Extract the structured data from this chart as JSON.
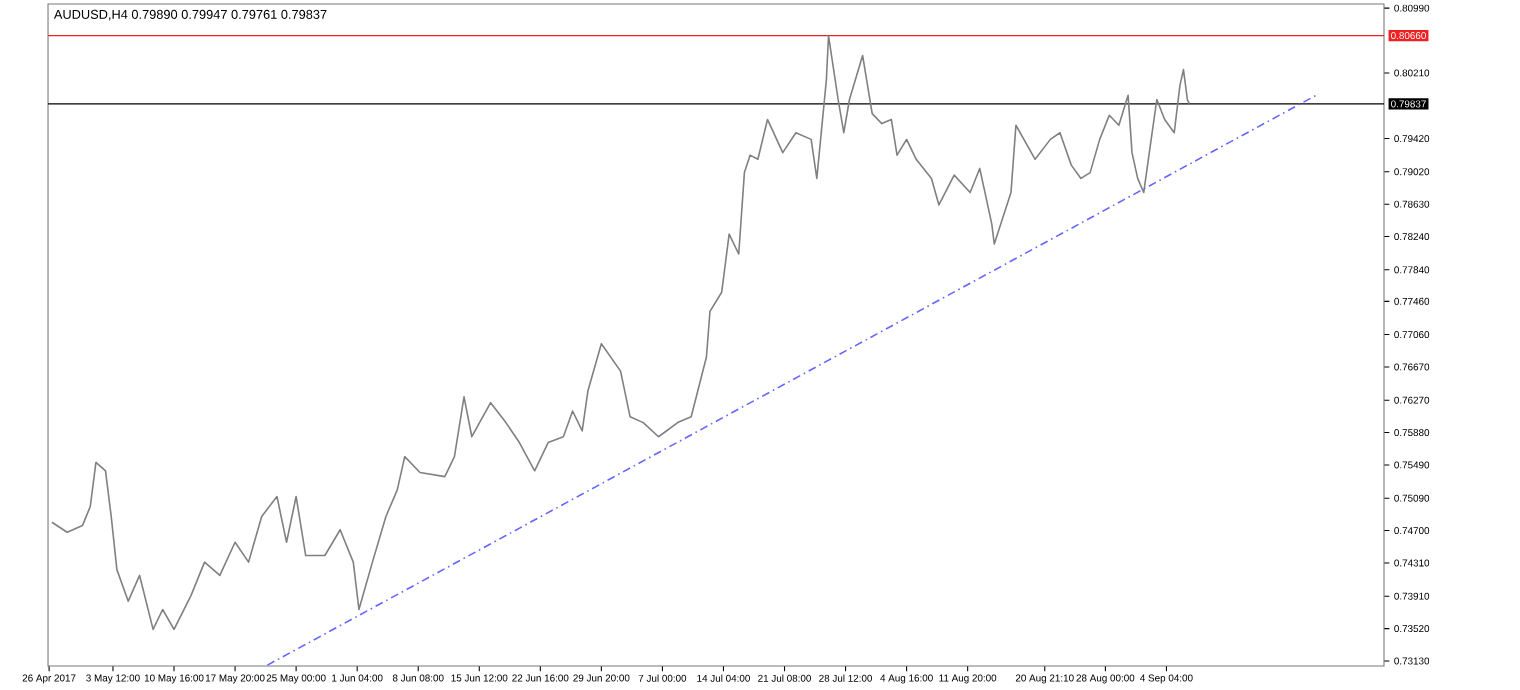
{
  "chart_data": {
    "type": "line",
    "title": "AUDUSD,H4  0.79890 0.79947 0.79761 0.79837",
    "marker": "none",
    "x": [
      "2017-04-26T08:00",
      "2017-04-28T03:00",
      "2017-04-29T22:00",
      "2017-04-30T20:00",
      "2017-05-01T12:00",
      "2017-05-02T15:00",
      "2017-05-03T07:00",
      "2017-05-03T23:00",
      "2017-05-05T07:00",
      "2017-05-06T15:00",
      "2017-05-08T05:00",
      "2017-05-09T08:00",
      "2017-05-10T16:00",
      "2017-05-12T16:00",
      "2017-05-14T06:00",
      "2017-05-16T01:00",
      "2017-05-17T20:00",
      "2017-05-19T10:00",
      "2017-05-20T23:00",
      "2017-05-22T18:00",
      "2017-05-23T21:00",
      "2017-05-25T00:00",
      "2017-05-26T03:00",
      "2017-05-28T09:00",
      "2017-05-30T04:00",
      "2017-05-31T17:00",
      "2017-06-01T09:00",
      "2017-06-02T23:00",
      "2017-06-04T13:00",
      "2017-06-05T21:00",
      "2017-06-06T18:00",
      "2017-06-08T13:00",
      "2017-06-11T11:00",
      "2017-06-12T14:00",
      "2017-06-13T17:00",
      "2017-06-14T15:00",
      "2017-06-16T20:00",
      "2017-06-18T15:00",
      "2017-06-20T05:00",
      "2017-06-22T00:00",
      "2017-06-23T14:00",
      "2017-06-25T09:00",
      "2017-06-26T11:00",
      "2017-06-27T14:00",
      "2017-06-28T06:00",
      "2017-06-29T20:00",
      "2017-07-02T02:00",
      "2017-07-03T05:00",
      "2017-07-04T18:00",
      "2017-07-06T13:00",
      "2017-07-08T19:00",
      "2017-07-10T09:00",
      "2017-07-12T04:00",
      "2017-07-12T14:00",
      "2017-07-13T23:00",
      "2017-07-14T20:00",
      "2017-07-15T23:00",
      "2017-07-16T15:00",
      "2017-07-17T07:00",
      "2017-07-18T05:00",
      "2017-07-19T08:00",
      "2017-07-21T03:00",
      "2017-07-22T16:00",
      "2017-07-24T11:00",
      "2017-07-25T03:00",
      "2017-07-26T06:00",
      "2017-07-26T12:00",
      "2017-07-27T15:00",
      "2017-07-28T07:00",
      "2017-07-28T23:00",
      "2017-07-30T12:00",
      "2017-07-31T15:00",
      "2017-08-01T18:00",
      "2017-08-02T21:00",
      "2017-08-03T13:00",
      "2017-08-04T16:00",
      "2017-08-05T19:00",
      "2017-08-07T14:00",
      "2017-08-08T11:00",
      "2017-08-10T06:00",
      "2017-08-12T03:00",
      "2017-08-13T06:00",
      "2017-08-14T16:00",
      "2017-08-14T23:00",
      "2017-08-16T22:00",
      "2017-08-17T12:00",
      "2017-08-19T18:00",
      "2017-08-21T13:00",
      "2017-08-22T16:00",
      "2017-08-24T00:00",
      "2017-08-25T03:00",
      "2017-08-26T05:00",
      "2017-08-27T08:00",
      "2017-08-28T11:00",
      "2017-08-29T14:00",
      "2017-08-30T16:00",
      "2017-08-31T03:00",
      "2017-08-31T19:00",
      "2017-09-01T12:00",
      "2017-09-02T09:00",
      "2017-09-03T01:00",
      "2017-09-03T23:00",
      "2017-09-05T02:00",
      "2017-09-05T18:00",
      "2017-09-06T04:00",
      "2017-09-06T15:00",
      "2017-09-06T20:00"
    ],
    "series": [
      {
        "color": "#808080",
        "values": [
          0.748,
          0.7468,
          0.7476,
          0.7499,
          0.7552,
          0.7542,
          0.7487,
          0.7423,
          0.7385,
          0.7416,
          0.7351,
          0.7375,
          0.7351,
          0.7392,
          0.7432,
          0.7416,
          0.7456,
          0.7432,
          0.7487,
          0.7511,
          0.7456,
          0.7511,
          0.744,
          0.744,
          0.7471,
          0.7432,
          0.7375,
          0.7432,
          0.7487,
          0.7519,
          0.7559,
          0.754,
          0.7535,
          0.7559,
          0.7631,
          0.7583,
          0.7624,
          0.76,
          0.7576,
          0.7542,
          0.7576,
          0.7583,
          0.7614,
          0.759,
          0.7638,
          0.7695,
          0.7662,
          0.7607,
          0.76,
          0.7583,
          0.76,
          0.7607,
          0.7679,
          0.7734,
          0.7757,
          0.7827,
          0.7803,
          0.7901,
          0.7922,
          0.7917,
          0.7965,
          0.7925,
          0.7949,
          0.7941,
          0.7894,
          0.8013,
          0.8066,
          0.7989,
          0.7949,
          0.7989,
          0.8042,
          0.7972,
          0.796,
          0.7965,
          0.7922,
          0.7941,
          0.7917,
          0.7894,
          0.7862,
          0.7898,
          0.7877,
          0.7906,
          0.7839,
          0.7815,
          0.7877,
          0.7958,
          0.7917,
          0.7941,
          0.7949,
          0.791,
          0.7894,
          0.7901,
          0.7941,
          0.797,
          0.7958,
          0.7994,
          0.7925,
          0.7894,
          0.7877,
          0.7941,
          0.7989,
          0.7965,
          0.7949,
          0.8006,
          0.8025,
          0.7989,
          0.7984
        ]
      },
      {
        "type": "line",
        "color": "#6666ff",
        "line_style": "dashed",
        "x": [
          "2017-05-21T15:00",
          "2017-09-22T02:00"
        ],
        "values": [
          0.7308,
          0.7996
        ]
      }
    ],
    "xlim": [
      "2017-04-25T21:00",
      "2017-09-29T17:00"
    ],
    "ylim": [
      0.7307,
      0.8104
    ],
    "xticks": [
      {
        "value": "2017-04-26",
        "label": "26 Apr 2017"
      },
      {
        "value": "2017-05-03T12:00",
        "label": "3 May 12:00"
      },
      {
        "value": "2017-05-10T16:00",
        "label": "10 May 16:00"
      },
      {
        "value": "2017-05-17T20:00",
        "label": "17 May 20:00"
      },
      {
        "value": "2017-05-25T00:00",
        "label": "25 May 00:00"
      },
      {
        "value": "2017-06-01T04:00",
        "label": "1 Jun 04:00"
      },
      {
        "value": "2017-06-08T08:00",
        "label": "8 Jun 08:00"
      },
      {
        "value": "2017-06-15T12:00",
        "label": "15 Jun 12:00"
      },
      {
        "value": "2017-06-22T16:00",
        "label": "22 Jun 16:00"
      },
      {
        "value": "2017-06-29T20:00",
        "label": "29 Jun 20:00"
      },
      {
        "value": "2017-07-07T00:00",
        "label": "7 Jul 00:00"
      },
      {
        "value": "2017-07-14T04:00",
        "label": "14 Jul 04:00"
      },
      {
        "value": "2017-07-21T08:00",
        "label": "21 Jul 08:00"
      },
      {
        "value": "2017-07-28T12:00",
        "label": "28 Jul 12:00"
      },
      {
        "value": "2017-08-04T16:00",
        "label": "4 Aug 16:00"
      },
      {
        "value": "2017-08-11T20:00",
        "label": "11 Aug 20:00"
      },
      {
        "value": "2017-08-20T21:10",
        "label": "20 Aug 21:10"
      },
      {
        "value": "2017-08-28T00:00",
        "label": "28 Aug 00:00"
      },
      {
        "value": "2017-09-04T04:00",
        "label": "4 Sep 04:00"
      }
    ],
    "yticks": [
      {
        "value": 0.8099,
        "label": "0.80990"
      },
      {
        "value": 0.8021,
        "label": "0.80210"
      },
      {
        "value": 0.7942,
        "label": "0.79420"
      },
      {
        "value": 0.7902,
        "label": "0.79020"
      },
      {
        "value": 0.7863,
        "label": "0.78630"
      },
      {
        "value": 0.7824,
        "label": "0.78240"
      },
      {
        "value": 0.7784,
        "label": "0.77840"
      },
      {
        "value": 0.7746,
        "label": "0.77460"
      },
      {
        "value": 0.7706,
        "label": "0.77060"
      },
      {
        "value": 0.7667,
        "label": "0.76670"
      },
      {
        "value": 0.7627,
        "label": "0.76270"
      },
      {
        "value": 0.7588,
        "label": "0.75880"
      },
      {
        "value": 0.7549,
        "label": "0.75490"
      },
      {
        "value": 0.7509,
        "label": "0.75090"
      },
      {
        "value": 0.747,
        "label": "0.74700"
      },
      {
        "value": 0.7431,
        "label": "0.74310"
      },
      {
        "value": 0.7391,
        "label": "0.73910"
      },
      {
        "value": 0.7352,
        "label": "0.73520"
      },
      {
        "value": 0.7313,
        "label": "0.73130"
      }
    ],
    "ref_lines": [
      {
        "axis": "y",
        "value": 0.8066,
        "label": "0.80660",
        "color": "#ee2222"
      },
      {
        "axis": "y",
        "value": 0.79837,
        "label": "0.79837",
        "color": "#000000"
      }
    ]
  }
}
